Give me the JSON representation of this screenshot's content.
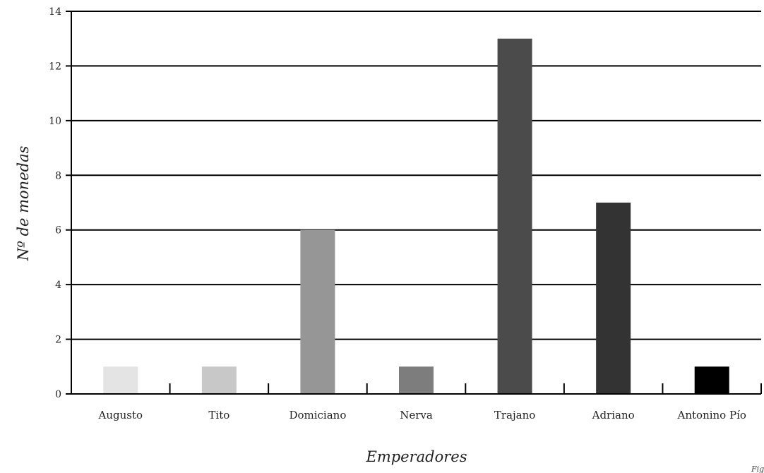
{
  "chart_data": {
    "type": "bar",
    "categories": [
      "Augusto",
      "Tito",
      "Domiciano",
      "Nerva",
      "Trajano",
      "Adriano",
      "Antonino Pío"
    ],
    "values": [
      1,
      1,
      6,
      1,
      13,
      7,
      1
    ],
    "colors": [
      "#e4e4e4",
      "#c8c8c8",
      "#969696",
      "#7d7d7d",
      "#4b4b4b",
      "#333333",
      "#000000"
    ],
    "xlabel": "Emperadores",
    "ylabel": "Nº de monedas",
    "ylim": [
      0,
      14
    ],
    "yticks": [
      "0",
      "2",
      "4",
      "6",
      "8",
      "10",
      "12",
      "14"
    ],
    "grid": true
  },
  "corner_text": "Fig"
}
